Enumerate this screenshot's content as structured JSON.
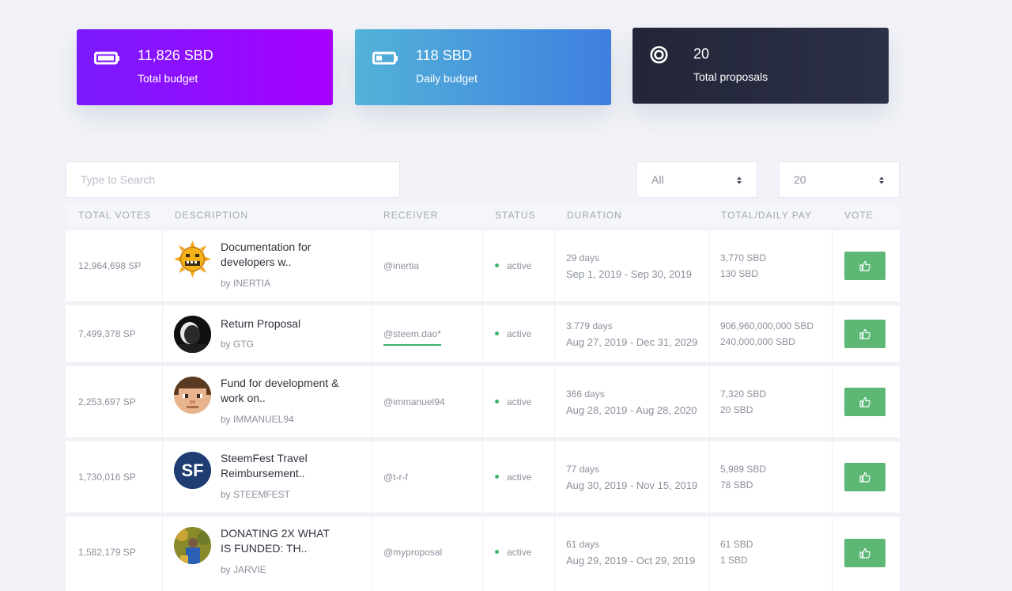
{
  "stats": {
    "total_budget": {
      "value": "11,826 SBD",
      "label": "Total budget",
      "icon": "battery-full-icon"
    },
    "daily_budget": {
      "value": "118 SBD",
      "label": "Daily budget",
      "icon": "battery-low-icon"
    },
    "total_proposals": {
      "value": "20",
      "label": "Total proposals",
      "icon": "target-icon"
    }
  },
  "filters": {
    "search_placeholder": "Type to Search",
    "status_selected": "All",
    "count_selected": "20"
  },
  "table": {
    "headers": {
      "votes": "TOTAL VOTES",
      "description": "DESCRIPTION",
      "receiver": "RECEIVER",
      "status": "STATUS",
      "duration": "DURATION",
      "pay": "TOTAL/DAILY PAY",
      "vote": "VOTE"
    },
    "rows": [
      {
        "votes": "12,964,698 SP",
        "title_line1": "Documentation for",
        "title_line2": "developers w..",
        "by": "by INERTIA",
        "receiver": "@inertia",
        "status": "active",
        "days": "29 days",
        "range": "Sep 1, 2019 - Sep 30, 2019",
        "total_pay": "3,770 SBD",
        "daily_pay": "130 SBD"
      },
      {
        "votes": "7,499,378 SP",
        "title_line1": "Return Proposal",
        "title_line2": "",
        "by": "by GTG",
        "receiver": "@steem.dao*",
        "status": "active",
        "days": "3.779 days",
        "range": "Aug 27, 2019 - Dec 31, 2029",
        "total_pay": "906,960,000,000 SBD",
        "daily_pay": "240,000,000 SBD"
      },
      {
        "votes": "2,253,697 SP",
        "title_line1": "Fund for development &",
        "title_line2": "work on..",
        "by": "by IMMANUEL94",
        "receiver": "@immanuel94",
        "status": "active",
        "days": "366 days",
        "range": "Aug 28, 2019 - Aug 28, 2020",
        "total_pay": "7,320 SBD",
        "daily_pay": "20 SBD"
      },
      {
        "votes": "1,730,016 SP",
        "title_line1": "SteemFest Travel",
        "title_line2": "Reimbursement..",
        "by": "by STEEMFEST",
        "receiver": "@t-r-f",
        "status": "active",
        "days": "77 days",
        "range": "Aug 30, 2019 - Nov 15, 2019",
        "total_pay": "5,989 SBD",
        "daily_pay": "78 SBD"
      },
      {
        "votes": "1,582,179 SP",
        "title_line1": "DONATING 2X WHAT",
        "title_line2": "IS FUNDED: TH..",
        "by": "by JARVIE",
        "receiver": "@myproposal",
        "status": "active",
        "days": "61 days",
        "range": "Aug 29, 2019 - Oct 29, 2019",
        "total_pay": "61 SBD",
        "daily_pay": "1 SBD"
      }
    ]
  },
  "avatars": {
    "row0": "inertia-sun-avatar",
    "row1": "gtg-avatar",
    "row2": "immanuel94-avatar",
    "row3": "steemfest-sf-avatar",
    "row3_text": "SF",
    "row4": "jarvie-avatar"
  },
  "colors": {
    "accent_green": "#5cb874",
    "status_green": "#3cb46e",
    "purple": "#8a10ff",
    "blue": "#4a9be0",
    "navy": "#282b3f"
  }
}
